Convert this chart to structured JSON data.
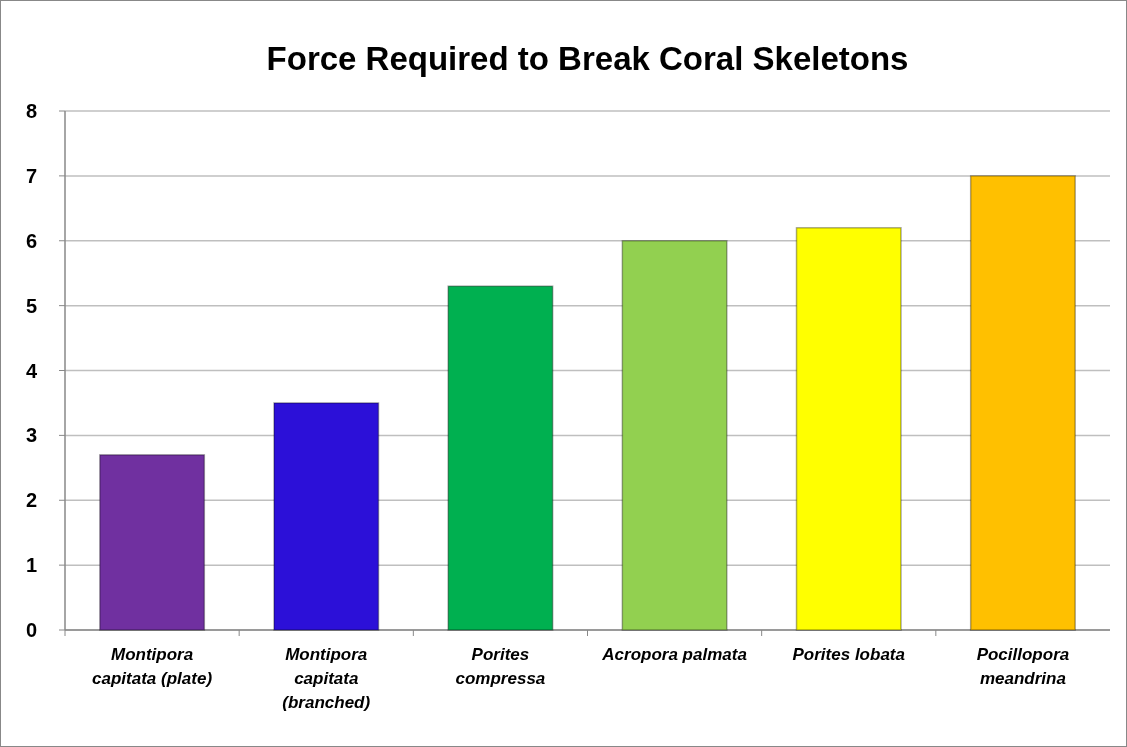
{
  "chart_data": {
    "type": "bar",
    "title": "Force Required to Break Coral Skeletons",
    "categories": [
      "Montipora capitata (plate)",
      "Montipora capitata (branched)",
      "Porites compressa",
      "Acropora palmata",
      "Porites lobata",
      "Pocillopora meandrina"
    ],
    "values": [
      2.7,
      3.5,
      5.3,
      6.0,
      6.2,
      7.0
    ],
    "colors": [
      "#7030a0",
      "#2c10d8",
      "#00b050",
      "#92d050",
      "#ffff00",
      "#ffc000"
    ],
    "ylim": [
      0,
      8
    ],
    "yticks": [
      0,
      1,
      2,
      3,
      4,
      5,
      6,
      7,
      8
    ],
    "grid": "y"
  }
}
